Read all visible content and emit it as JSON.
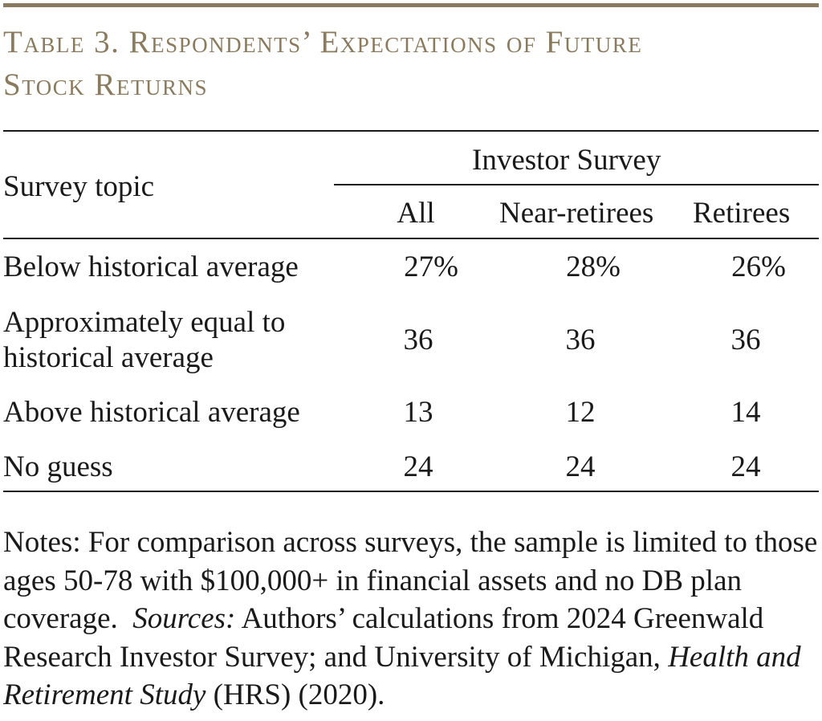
{
  "table": {
    "title_line1": "Table 3. Respondents’ Expectations of Future",
    "title_line2": "Stock Returns",
    "group_header": "Investor Survey",
    "row_header": "Survey topic",
    "columns": [
      "All",
      "Near-retirees",
      "Retirees"
    ],
    "rows": [
      {
        "label_line1": "Below historical average",
        "label_line2": "",
        "values": [
          "27%",
          "28%",
          "26%"
        ]
      },
      {
        "label_line1": "Approximately equal to",
        "label_line2": "historical average",
        "values": [
          "36",
          "36",
          "36"
        ]
      },
      {
        "label_line1": "Above historical average",
        "label_line2": "",
        "values": [
          "13",
          "12",
          "14"
        ]
      },
      {
        "label_line1": "No guess",
        "label_line2": "",
        "values": [
          "24",
          "24",
          "24"
        ]
      }
    ]
  },
  "notes": {
    "text_before_sources": "Notes: For comparison across surveys, the sample is limited to those ages 50-78 with $100,000+ in financial assets and no DB plan coverage.",
    "sources_label": "Sources:",
    "text_after_sources": "Authors’ calculations from 2024 Greenwald Research Investor Survey; and University of Michigan,",
    "study_name": "Health and Retirement Study",
    "text_end": "(HRS) (2020)."
  },
  "colors": {
    "title": "#8b7b5e",
    "rule": "#1a1a1a",
    "text": "#1a1a1a"
  }
}
